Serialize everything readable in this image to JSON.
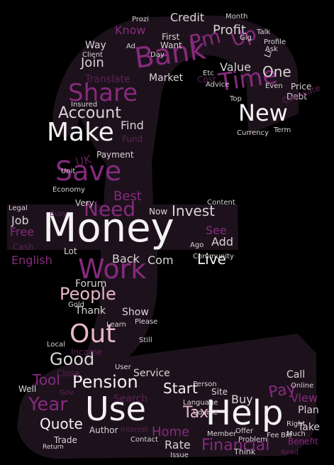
{
  "wordcloud": {
    "colors": {
      "background": "#000000",
      "shape_fill": "#1d121c",
      "white": "#f4f2f3",
      "light": "#d9d4d6",
      "grey": "#b9b0b5",
      "pink": "#e9b7c8",
      "purple": "#862a7d",
      "deep": "#5c2155"
    },
    "words": [
      {
        "text": "Money",
        "color": "white"
      },
      {
        "text": "Help",
        "color": "white"
      },
      {
        "text": "Use",
        "color": "white"
      },
      {
        "text": "Bank",
        "color": "purple"
      },
      {
        "text": "Work",
        "color": "purple"
      },
      {
        "text": "Save",
        "color": "purple"
      },
      {
        "text": "Out",
        "color": "pink"
      },
      {
        "text": "Make",
        "color": "white"
      },
      {
        "text": "Share",
        "color": "purple"
      },
      {
        "text": "New",
        "color": "white"
      },
      {
        "text": "Time",
        "color": "purple"
      },
      {
        "text": "Need",
        "color": "purple"
      },
      {
        "text": "People",
        "color": "pink"
      },
      {
        "text": "Good",
        "color": "light"
      },
      {
        "text": "Year",
        "color": "purple"
      },
      {
        "text": "Pension",
        "color": "white"
      },
      {
        "text": "Account",
        "color": "light"
      },
      {
        "text": "Pay",
        "color": "purple"
      },
      {
        "text": "Financial",
        "color": "purple"
      },
      {
        "text": "Start",
        "color": "white"
      },
      {
        "text": "Tax",
        "color": "pink"
      },
      {
        "text": "Invest",
        "color": "light"
      },
      {
        "text": "Live",
        "color": "white"
      },
      {
        "text": "Quote",
        "color": "white"
      },
      {
        "text": "Up",
        "color": "purple"
      },
      {
        "text": "One",
        "color": "light"
      },
      {
        "text": "Join",
        "color": "light"
      },
      {
        "text": "Profit",
        "color": "light"
      },
      {
        "text": "Tool",
        "color": "purple"
      },
      {
        "text": "Credit",
        "color": "light"
      },
      {
        "text": "Best",
        "color": "purple"
      },
      {
        "text": "English",
        "color": "purple"
      },
      {
        "text": "Home",
        "color": "purple"
      },
      {
        "text": "Rate",
        "color": "light"
      },
      {
        "text": "Buy",
        "color": "light"
      },
      {
        "text": "View",
        "color": "purple"
      },
      {
        "text": "Market",
        "color": "light"
      },
      {
        "text": "Value",
        "color": "light"
      },
      {
        "text": "Find",
        "color": "light"
      },
      {
        "text": "Add",
        "color": "light"
      },
      {
        "text": "Back",
        "color": "light"
      },
      {
        "text": "Com",
        "color": "light"
      },
      {
        "text": "Job",
        "color": "light"
      },
      {
        "text": "See",
        "color": "purple"
      },
      {
        "text": "Free",
        "color": "purple"
      },
      {
        "text": "Service",
        "color": "light"
      },
      {
        "text": "Thank",
        "color": "light"
      },
      {
        "text": "Show",
        "color": "light"
      },
      {
        "text": "Forum",
        "color": "light"
      },
      {
        "text": "Search",
        "color": "deep"
      },
      {
        "text": "Take",
        "color": "light"
      },
      {
        "text": "Call",
        "color": "light"
      },
      {
        "text": "Plan",
        "color": "light"
      },
      {
        "text": "Way",
        "color": "light"
      },
      {
        "text": "Know",
        "color": "purple"
      },
      {
        "text": "Payment",
        "color": "light"
      },
      {
        "text": "Translate",
        "color": "deep"
      },
      {
        "text": "Now",
        "color": "light"
      },
      {
        "text": "Very",
        "color": "light"
      },
      {
        "text": "Price",
        "color": "light"
      },
      {
        "text": "Debt",
        "color": "light"
      },
      {
        "text": "Currency",
        "color": "light"
      },
      {
        "text": "Term",
        "color": "light"
      },
      {
        "text": "Economy",
        "color": "light"
      },
      {
        "text": "Learn",
        "color": "light"
      },
      {
        "text": "Well",
        "color": "light"
      },
      {
        "text": "Trade",
        "color": "light"
      },
      {
        "text": "Author",
        "color": "light"
      },
      {
        "text": "Member",
        "color": "light"
      },
      {
        "text": "Think",
        "color": "light"
      },
      {
        "text": "Fee",
        "color": "light"
      },
      {
        "text": "Benefit",
        "color": "purple"
      },
      {
        "text": "Site",
        "color": "light"
      },
      {
        "text": "Lot",
        "color": "light"
      },
      {
        "text": "Gold",
        "color": "light"
      },
      {
        "text": "User",
        "color": "light"
      },
      {
        "text": "Cost",
        "color": "deep"
      },
      {
        "text": "Talk",
        "color": "light"
      },
      {
        "text": "Profile",
        "color": "light"
      },
      {
        "text": "Month",
        "color": "light"
      },
      {
        "text": "First",
        "color": "light"
      },
      {
        "text": "Want",
        "color": "light"
      },
      {
        "text": "Insured",
        "color": "light"
      },
      {
        "text": "Fund",
        "color": "deep"
      },
      {
        "text": "Day",
        "color": "light"
      },
      {
        "text": "Calculate",
        "color": "deep"
      },
      {
        "text": "Content",
        "color": "light"
      },
      {
        "text": "Course",
        "color": "light"
      },
      {
        "text": "Online",
        "color": "light"
      },
      {
        "text": "Offer",
        "color": "light"
      },
      {
        "text": "Bill",
        "color": "light"
      },
      {
        "text": "Person",
        "color": "light"
      },
      {
        "text": "Interest",
        "color": "deep"
      },
      {
        "text": "Contact",
        "color": "light"
      },
      {
        "text": "Issue",
        "color": "light"
      },
      {
        "text": "Read",
        "color": "deep"
      },
      {
        "text": "Income",
        "color": "deep"
      },
      {
        "text": "Unit",
        "color": "light"
      },
      {
        "text": "Client",
        "color": "light"
      },
      {
        "text": "Ask",
        "color": "light"
      },
      {
        "text": "Cash",
        "color": "deep"
      },
      {
        "text": "Please",
        "color": "light"
      },
      {
        "text": "Even",
        "color": "light"
      },
      {
        "text": "Still",
        "color": "light"
      },
      {
        "text": "Local",
        "color": "light"
      },
      {
        "text": "Close",
        "color": "deep"
      },
      {
        "text": "Ad",
        "color": "light"
      },
      {
        "text": "Gig",
        "color": "light"
      },
      {
        "text": "Etc",
        "color": "light"
      },
      {
        "text": "Top",
        "color": "light"
      },
      {
        "text": "Problem",
        "color": "light"
      },
      {
        "text": "Language",
        "color": "light"
      },
      {
        "text": "Legal",
        "color": "light"
      },
      {
        "text": "Busy",
        "color": "deep"
      },
      {
        "text": "Gov",
        "color": "deep"
      },
      {
        "text": "Return",
        "color": "light"
      },
      {
        "text": "Prozi",
        "color": "light"
      },
      {
        "text": "Pm",
        "color": "purple"
      },
      {
        "text": "Ago",
        "color": "light"
      },
      {
        "text": "Advice",
        "color": "light"
      },
      {
        "text": "Much",
        "color": "light"
      },
      {
        "text": "Community",
        "color": "light"
      },
      {
        "text": "Right",
        "color": "light"
      },
      {
        "text": "Li",
        "color": "light"
      },
      {
        "text": "UK",
        "color": "deep"
      }
    ]
  }
}
